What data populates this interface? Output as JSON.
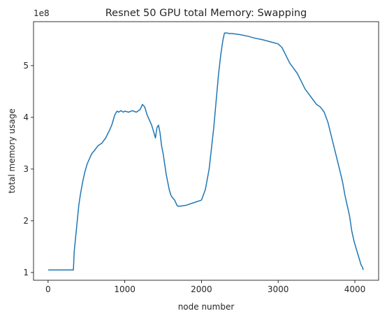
{
  "chart_data": {
    "type": "line",
    "title": "Resnet 50 GPU total Memory: Swapping",
    "xlabel": "node number",
    "ylabel": "total memory usage",
    "y_offset_label": "1e8",
    "xlim": [
      -190,
      4310
    ],
    "ylim": [
      0.85,
      5.85
    ],
    "xticks": [
      0,
      1000,
      2000,
      3000,
      4000
    ],
    "xtick_labels": [
      "0",
      "1000",
      "2000",
      "3000",
      "4000"
    ],
    "yticks": [
      1,
      2,
      3,
      4,
      5
    ],
    "ytick_labels": [
      "1",
      "2",
      "3",
      "4",
      "5"
    ],
    "grid": false,
    "legend": "none",
    "colors": {
      "line": "#1f77b4",
      "axis": "#000000"
    },
    "series": [
      {
        "x": [
          0,
          100,
          200,
          330,
          340,
          360,
          380,
          400,
          420,
          450,
          480,
          510,
          540,
          570,
          600,
          650,
          700,
          750,
          800,
          830,
          850,
          870,
          890,
          900,
          920,
          950,
          980,
          1000,
          1050,
          1100,
          1150,
          1200,
          1230,
          1260,
          1290,
          1320,
          1350,
          1380,
          1400,
          1420,
          1440,
          1460,
          1480,
          1500,
          1520,
          1540,
          1560,
          1580,
          1600,
          1620,
          1650,
          1680,
          1700,
          1800,
          1900,
          2000,
          2050,
          2100,
          2130,
          2160,
          2190,
          2220,
          2250,
          2280,
          2300,
          2320,
          2340,
          2360,
          2400,
          2500,
          2600,
          2700,
          2800,
          2900,
          3000,
          3050,
          3100,
          3150,
          3200,
          3250,
          3300,
          3350,
          3400,
          3450,
          3500,
          3550,
          3600,
          3650,
          3700,
          3750,
          3800,
          3840,
          3870,
          3900,
          3930,
          3960,
          3990,
          4020,
          4040,
          4060,
          4080,
          4100,
          4110
        ],
        "values": [
          1.05,
          1.05,
          1.05,
          1.05,
          1.4,
          1.7,
          2.0,
          2.3,
          2.5,
          2.75,
          2.95,
          3.1,
          3.2,
          3.3,
          3.35,
          3.45,
          3.5,
          3.6,
          3.75,
          3.85,
          3.95,
          4.05,
          4.1,
          4.12,
          4.1,
          4.13,
          4.1,
          4.12,
          4.1,
          4.13,
          4.1,
          4.15,
          4.25,
          4.2,
          4.05,
          3.95,
          3.85,
          3.7,
          3.6,
          3.8,
          3.85,
          3.7,
          3.45,
          3.3,
          3.1,
          2.9,
          2.75,
          2.6,
          2.5,
          2.45,
          2.4,
          2.3,
          2.28,
          2.3,
          2.35,
          2.4,
          2.6,
          3.0,
          3.4,
          3.8,
          4.3,
          4.8,
          5.2,
          5.5,
          5.63,
          5.63,
          5.63,
          5.62,
          5.62,
          5.6,
          5.57,
          5.53,
          5.5,
          5.46,
          5.42,
          5.35,
          5.2,
          5.05,
          4.95,
          4.85,
          4.7,
          4.55,
          4.45,
          4.35,
          4.25,
          4.2,
          4.1,
          3.9,
          3.6,
          3.3,
          3.0,
          2.75,
          2.5,
          2.3,
          2.1,
          1.8,
          1.6,
          1.45,
          1.35,
          1.25,
          1.15,
          1.1,
          1.05
        ]
      }
    ]
  }
}
